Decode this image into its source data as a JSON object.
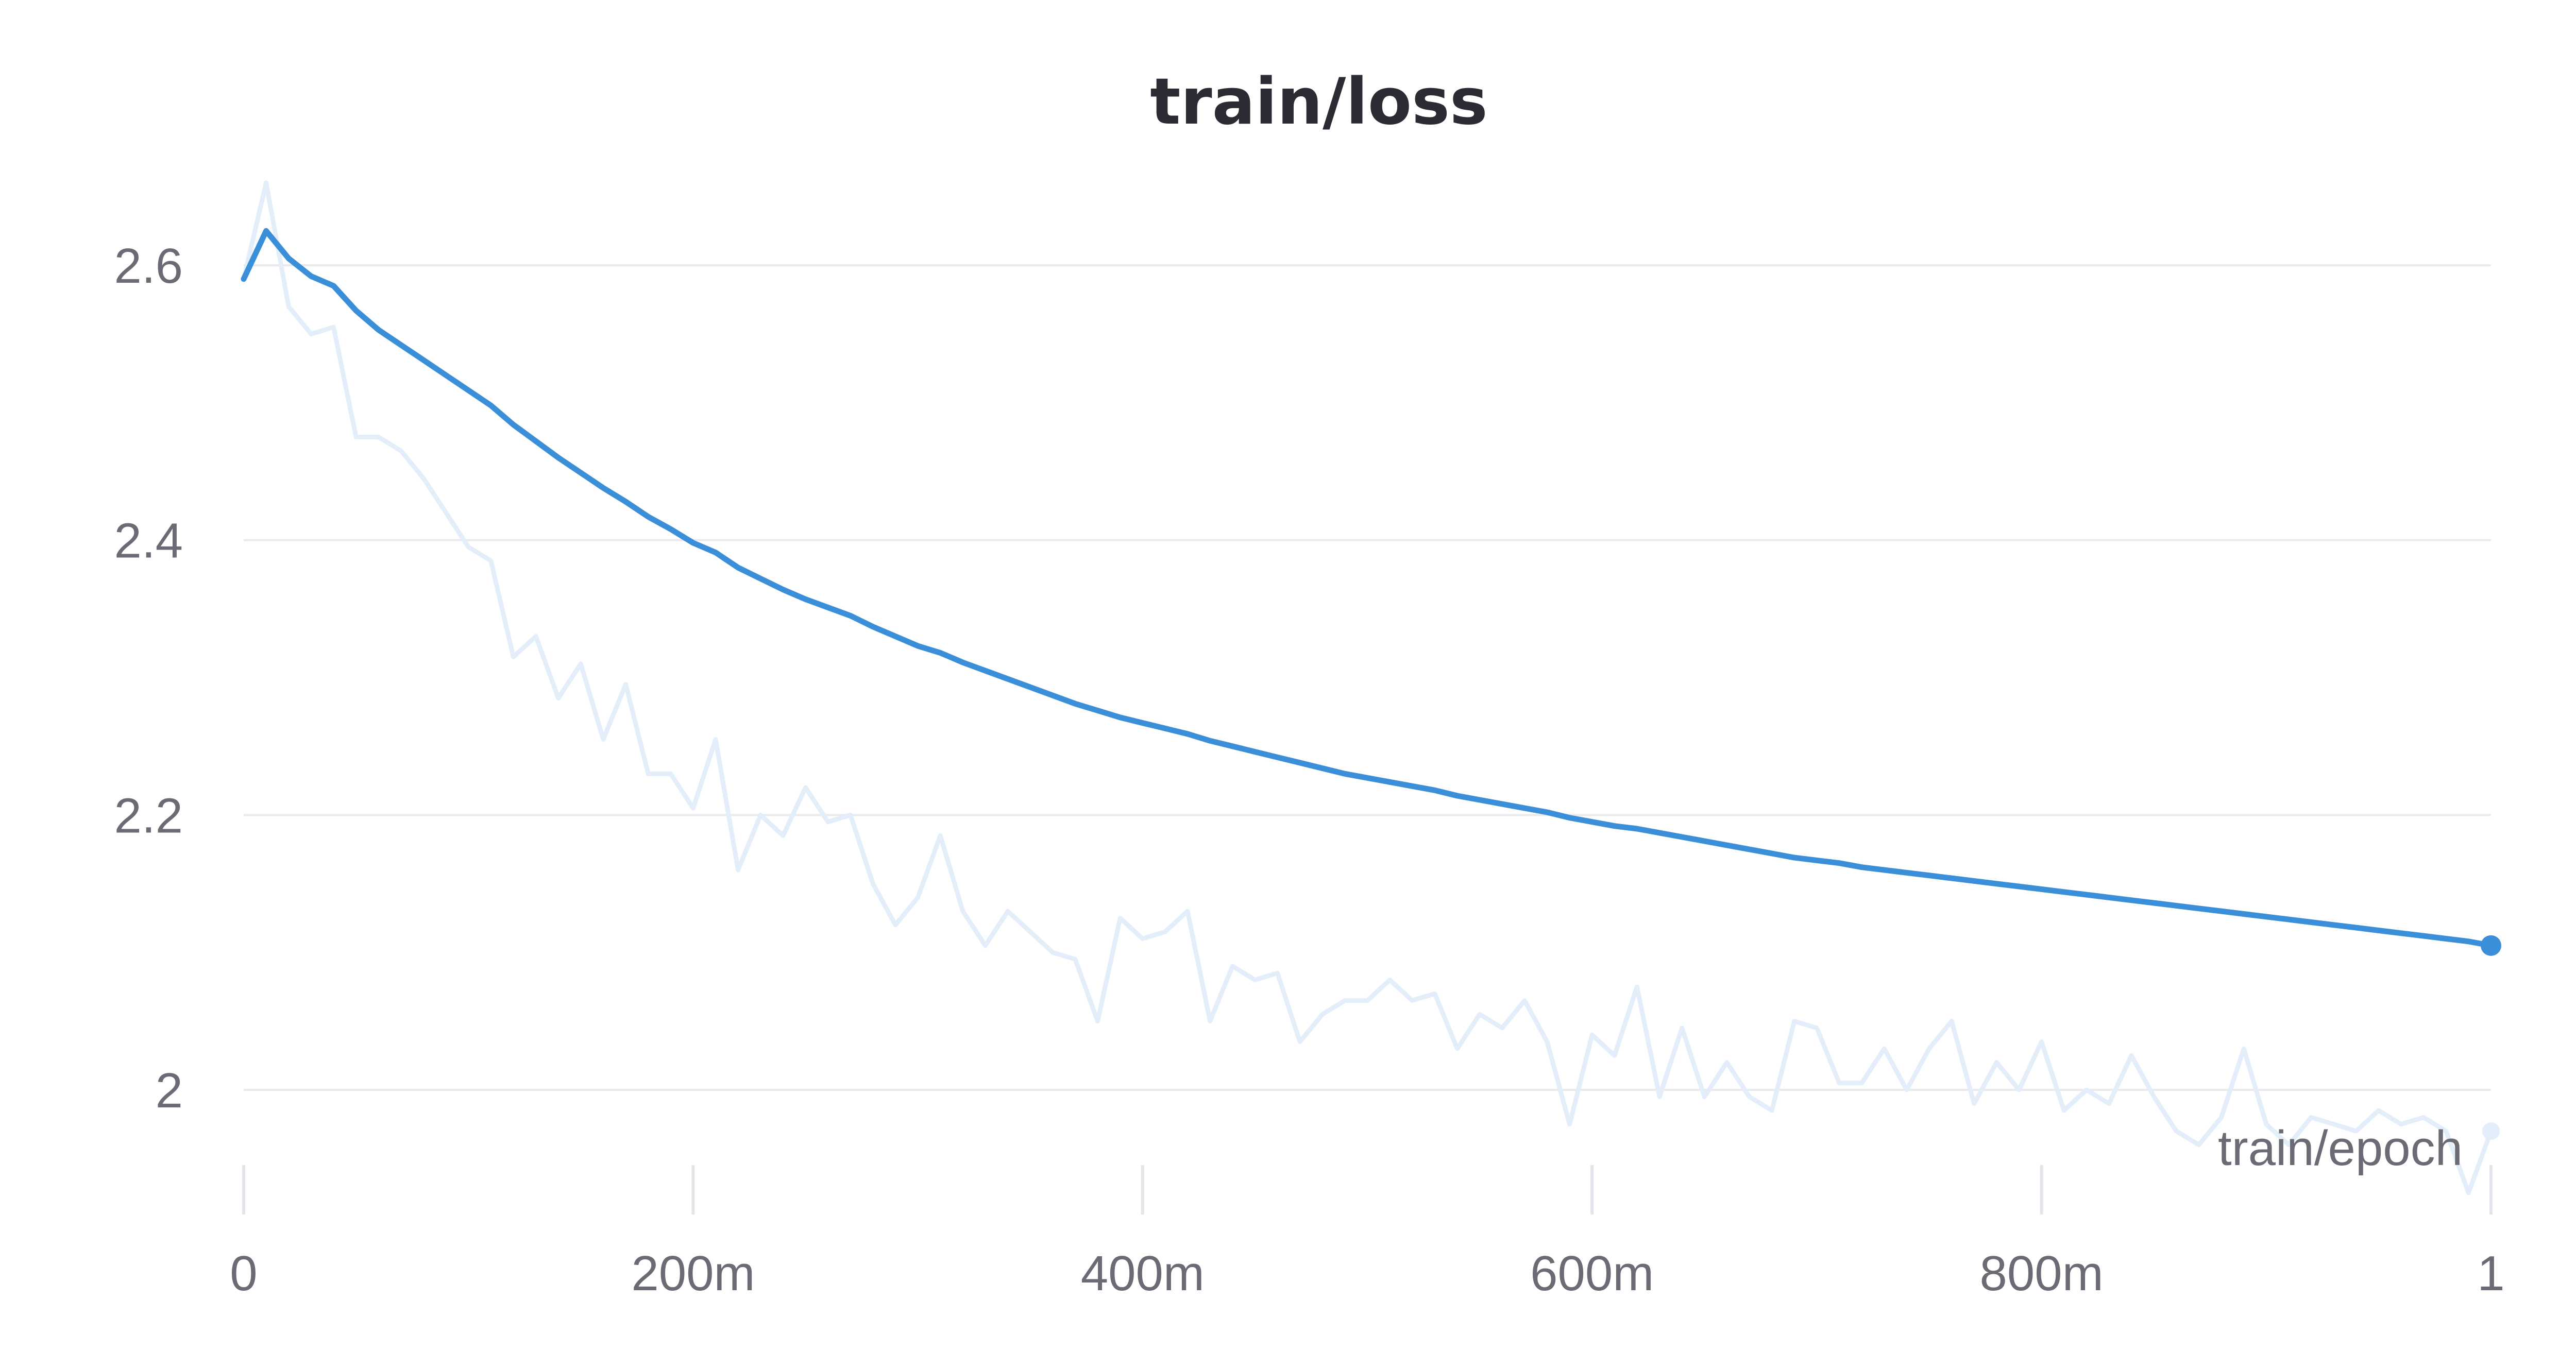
{
  "chart_data": {
    "type": "line",
    "title": "train/loss",
    "xlabel": "train/epoch",
    "ylabel": "",
    "xlim": [
      0,
      1
    ],
    "ylim": [
      1.93,
      2.67
    ],
    "x_ticks": [
      {
        "value": 0,
        "label": "0"
      },
      {
        "value": 0.2,
        "label": "200m"
      },
      {
        "value": 0.4,
        "label": "400m"
      },
      {
        "value": 0.6,
        "label": "600m"
      },
      {
        "value": 0.8,
        "label": "800m"
      },
      {
        "value": 1,
        "label": "1"
      }
    ],
    "y_ticks": [
      {
        "value": 2.0,
        "label": "2"
      },
      {
        "value": 2.2,
        "label": "2.2"
      },
      {
        "value": 2.4,
        "label": "2.4"
      },
      {
        "value": 2.6,
        "label": "2.6"
      }
    ],
    "grid": true,
    "colors": {
      "smoothed": "#3b8fd9",
      "raw": "#e3eefa"
    },
    "series": [
      {
        "role": "raw",
        "x": [
          0,
          0.01,
          0.02,
          0.03,
          0.04,
          0.05,
          0.06,
          0.07,
          0.08,
          0.09,
          0.1,
          0.11,
          0.12,
          0.13,
          0.14,
          0.15,
          0.16,
          0.17,
          0.18,
          0.19,
          0.2,
          0.21,
          0.22,
          0.23,
          0.24,
          0.25,
          0.26,
          0.27,
          0.28,
          0.29,
          0.3,
          0.31,
          0.32,
          0.33,
          0.34,
          0.35,
          0.36,
          0.37,
          0.38,
          0.39,
          0.4,
          0.41,
          0.42,
          0.43,
          0.44,
          0.45,
          0.46,
          0.47,
          0.48,
          0.49,
          0.5,
          0.51,
          0.52,
          0.53,
          0.54,
          0.55,
          0.56,
          0.57,
          0.58,
          0.59,
          0.6,
          0.61,
          0.62,
          0.63,
          0.64,
          0.65,
          0.66,
          0.67,
          0.68,
          0.69,
          0.7,
          0.71,
          0.72,
          0.73,
          0.74,
          0.75,
          0.76,
          0.77,
          0.78,
          0.79,
          0.8,
          0.81,
          0.82,
          0.83,
          0.84,
          0.85,
          0.86,
          0.87,
          0.88,
          0.89,
          0.9,
          0.91,
          0.92,
          0.93,
          0.94,
          0.95,
          0.96,
          0.97,
          0.98,
          0.99,
          1
        ],
        "values": [
          2.59,
          2.66,
          2.57,
          2.55,
          2.555,
          2.475,
          2.475,
          2.465,
          2.445,
          2.42,
          2.395,
          2.385,
          2.315,
          2.33,
          2.285,
          2.31,
          2.255,
          2.295,
          2.23,
          2.23,
          2.205,
          2.255,
          2.16,
          2.2,
          2.185,
          2.22,
          2.195,
          2.2,
          2.15,
          2.12,
          2.14,
          2.185,
          2.13,
          2.105,
          2.13,
          2.115,
          2.1,
          2.095,
          2.05,
          2.125,
          2.11,
          2.115,
          2.13,
          2.05,
          2.09,
          2.08,
          2.085,
          2.035,
          2.055,
          2.065,
          2.065,
          2.08,
          2.065,
          2.07,
          2.03,
          2.055,
          2.045,
          2.065,
          2.035,
          1.975,
          2.04,
          2.025,
          2.075,
          1.995,
          2.045,
          1.995,
          2.02,
          1.995,
          1.985,
          2.05,
          2.045,
          2.005,
          2.005,
          2.03,
          2.0,
          2.03,
          2.05,
          1.99,
          2.02,
          2.0,
          2.035,
          1.985,
          2.0,
          1.99,
          2.025,
          1.995,
          1.97,
          1.96,
          1.98,
          2.03,
          1.975,
          1.96,
          1.98,
          1.975,
          1.97,
          1.985,
          1.975,
          1.98,
          1.97,
          1.925,
          1.97
        ]
      },
      {
        "role": "smoothed",
        "x": [
          0,
          0.01,
          0.02,
          0.03,
          0.04,
          0.05,
          0.06,
          0.07,
          0.08,
          0.09,
          0.1,
          0.11,
          0.12,
          0.13,
          0.14,
          0.15,
          0.16,
          0.17,
          0.18,
          0.19,
          0.2,
          0.21,
          0.22,
          0.23,
          0.24,
          0.25,
          0.26,
          0.27,
          0.28,
          0.29,
          0.3,
          0.31,
          0.32,
          0.33,
          0.34,
          0.35,
          0.36,
          0.37,
          0.38,
          0.39,
          0.4,
          0.41,
          0.42,
          0.43,
          0.44,
          0.45,
          0.46,
          0.47,
          0.48,
          0.49,
          0.5,
          0.51,
          0.52,
          0.53,
          0.54,
          0.55,
          0.56,
          0.57,
          0.58,
          0.59,
          0.6,
          0.61,
          0.62,
          0.63,
          0.64,
          0.65,
          0.66,
          0.67,
          0.68,
          0.69,
          0.7,
          0.71,
          0.72,
          0.73,
          0.74,
          0.75,
          0.76,
          0.77,
          0.78,
          0.79,
          0.8,
          0.81,
          0.82,
          0.83,
          0.84,
          0.85,
          0.86,
          0.87,
          0.88,
          0.89,
          0.9,
          0.91,
          0.92,
          0.93,
          0.94,
          0.95,
          0.96,
          0.97,
          0.98,
          0.99,
          1
        ],
        "values": [
          2.59,
          2.625,
          2.605,
          2.592,
          2.585,
          2.567,
          2.553,
          2.542,
          2.531,
          2.52,
          2.509,
          2.498,
          2.484,
          2.472,
          2.46,
          2.449,
          2.438,
          2.428,
          2.417,
          2.408,
          2.398,
          2.391,
          2.38,
          2.372,
          2.364,
          2.357,
          2.351,
          2.345,
          2.337,
          2.33,
          2.323,
          2.318,
          2.311,
          2.305,
          2.299,
          2.293,
          2.287,
          2.281,
          2.276,
          2.271,
          2.267,
          2.263,
          2.259,
          2.254,
          2.25,
          2.246,
          2.242,
          2.238,
          2.234,
          2.23,
          2.227,
          2.224,
          2.221,
          2.218,
          2.214,
          2.211,
          2.208,
          2.205,
          2.202,
          2.198,
          2.195,
          2.192,
          2.19,
          2.187,
          2.184,
          2.181,
          2.178,
          2.175,
          2.172,
          2.169,
          2.167,
          2.165,
          2.162,
          2.16,
          2.158,
          2.156,
          2.154,
          2.152,
          2.15,
          2.148,
          2.146,
          2.144,
          2.142,
          2.14,
          2.138,
          2.136,
          2.134,
          2.132,
          2.13,
          2.128,
          2.126,
          2.124,
          2.122,
          2.12,
          2.118,
          2.116,
          2.114,
          2.112,
          2.11,
          2.108,
          2.105
        ]
      }
    ]
  }
}
